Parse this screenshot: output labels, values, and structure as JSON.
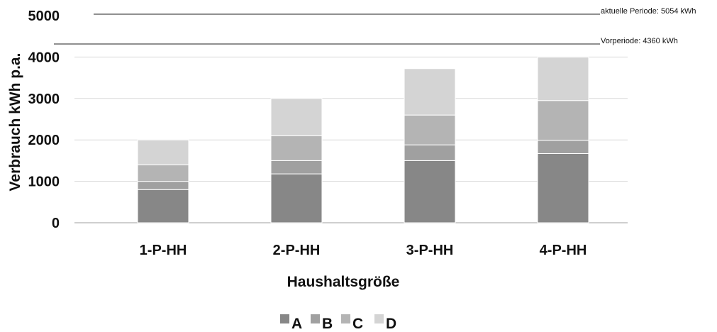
{
  "chart_data": {
    "type": "bar",
    "stacked": true,
    "categories": [
      "1-P-HH",
      "2-P-HH",
      "3-P-HH",
      "4-P-HH"
    ],
    "series": [
      {
        "name": "A",
        "color": "#878787",
        "values": [
          800,
          1180,
          1500,
          1670
        ]
      },
      {
        "name": "B",
        "color": "#a0a0a0",
        "values": [
          200,
          320,
          380,
          320
        ]
      },
      {
        "name": "C",
        "color": "#b4b4b4",
        "values": [
          400,
          600,
          720,
          960
        ]
      },
      {
        "name": "D",
        "color": "#d4d4d4",
        "values": [
          600,
          900,
          1120,
          1050
        ]
      }
    ],
    "xlabel": "Haushaltsgröße",
    "ylabel": "Verbrauch kWh p.a.",
    "ylim": [
      0,
      5000
    ],
    "yticks": [
      0,
      1000,
      2000,
      3000,
      4000,
      5000
    ],
    "grid": true,
    "legend": "bottom",
    "reference_lines": [
      {
        "label": "aktuelle Periode: 5054 kWh",
        "value": 5054
      },
      {
        "label": "Vorperiode: 4360 kWh",
        "value": 4360
      }
    ]
  }
}
